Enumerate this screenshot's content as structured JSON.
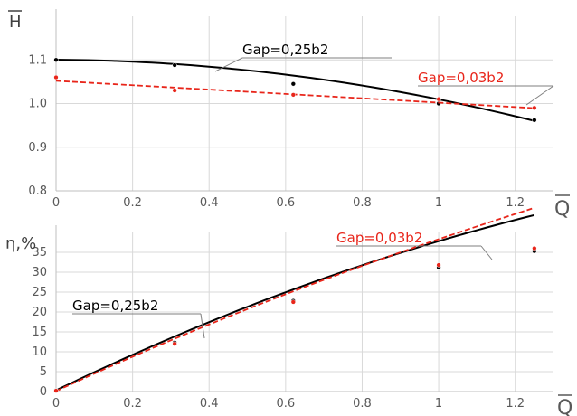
{
  "chart_data": [
    {
      "type": "line",
      "ylabel": "H",
      "xlabel": "Q",
      "xlim": [
        0,
        1.3
      ],
      "ylim": [
        0.8,
        1.2
      ],
      "xticks": [
        "0",
        "0.2",
        "0.4",
        "0.6",
        "0.8",
        "1",
        "1.2"
      ],
      "yticks": [
        "0.8",
        "0.9",
        "1.0",
        "1.1"
      ],
      "grid": true,
      "series": [
        {
          "name": "Gap=0,25b2",
          "color": "#000000",
          "dash": "solid",
          "points_x": [
            0,
            0.31,
            0.62,
            1.0,
            1.25
          ],
          "points_y": [
            1.1,
            1.088,
            1.045,
            1.0,
            0.962
          ],
          "fit": [
            1.1005,
            -0.006,
            -0.085
          ]
        },
        {
          "name": "Gap=0,03b2",
          "color": "#e8251a",
          "dash": "dashed",
          "points_x": [
            0,
            0.31,
            0.62,
            1.0,
            1.25
          ],
          "points_y": [
            1.06,
            1.03,
            1.02,
            1.01,
            0.99
          ],
          "fit": [
            1.052,
            -0.05
          ]
        }
      ],
      "annotations": [
        {
          "text": "Gap=0,25b2",
          "color": "#000000"
        },
        {
          "text": "Gap=0,03b2",
          "color": "#e8251a"
        }
      ]
    },
    {
      "type": "line",
      "ylabel": "η,%",
      "xlabel": "Q",
      "xlim": [
        0,
        1.3
      ],
      "ylim": [
        0,
        40
      ],
      "xticks": [
        "0",
        "0.2",
        "0.4",
        "0.6",
        "0.8",
        "1",
        "1.2"
      ],
      "yticks": [
        "0",
        "5",
        "10",
        "15",
        "20",
        "25",
        "30",
        "35"
      ],
      "grid": true,
      "series": [
        {
          "name": "Gap=0,25b2",
          "color": "#000000",
          "dash": "solid",
          "points_x": [
            0,
            0.31,
            0.62,
            1.0,
            1.25
          ],
          "points_y": [
            0.3,
            12.3,
            22.8,
            31.2,
            35.3
          ],
          "fit": [
            0.3,
            46.5,
            -9.0
          ]
        },
        {
          "name": "Gap=0,03b2",
          "color": "#e8251a",
          "dash": "dashed",
          "points_x": [
            0,
            0.31,
            0.62,
            1.0,
            1.25
          ],
          "points_y": [
            0.2,
            12.0,
            22.5,
            31.8,
            36.0
          ],
          "fit": [
            0.1,
            44.8,
            -7.6,
            1.0
          ]
        }
      ],
      "annotations": [
        {
          "text": "Gap=0,25b2",
          "color": "#000000"
        },
        {
          "text": "Gap=0,03b2",
          "color": "#e8251a"
        }
      ]
    }
  ]
}
